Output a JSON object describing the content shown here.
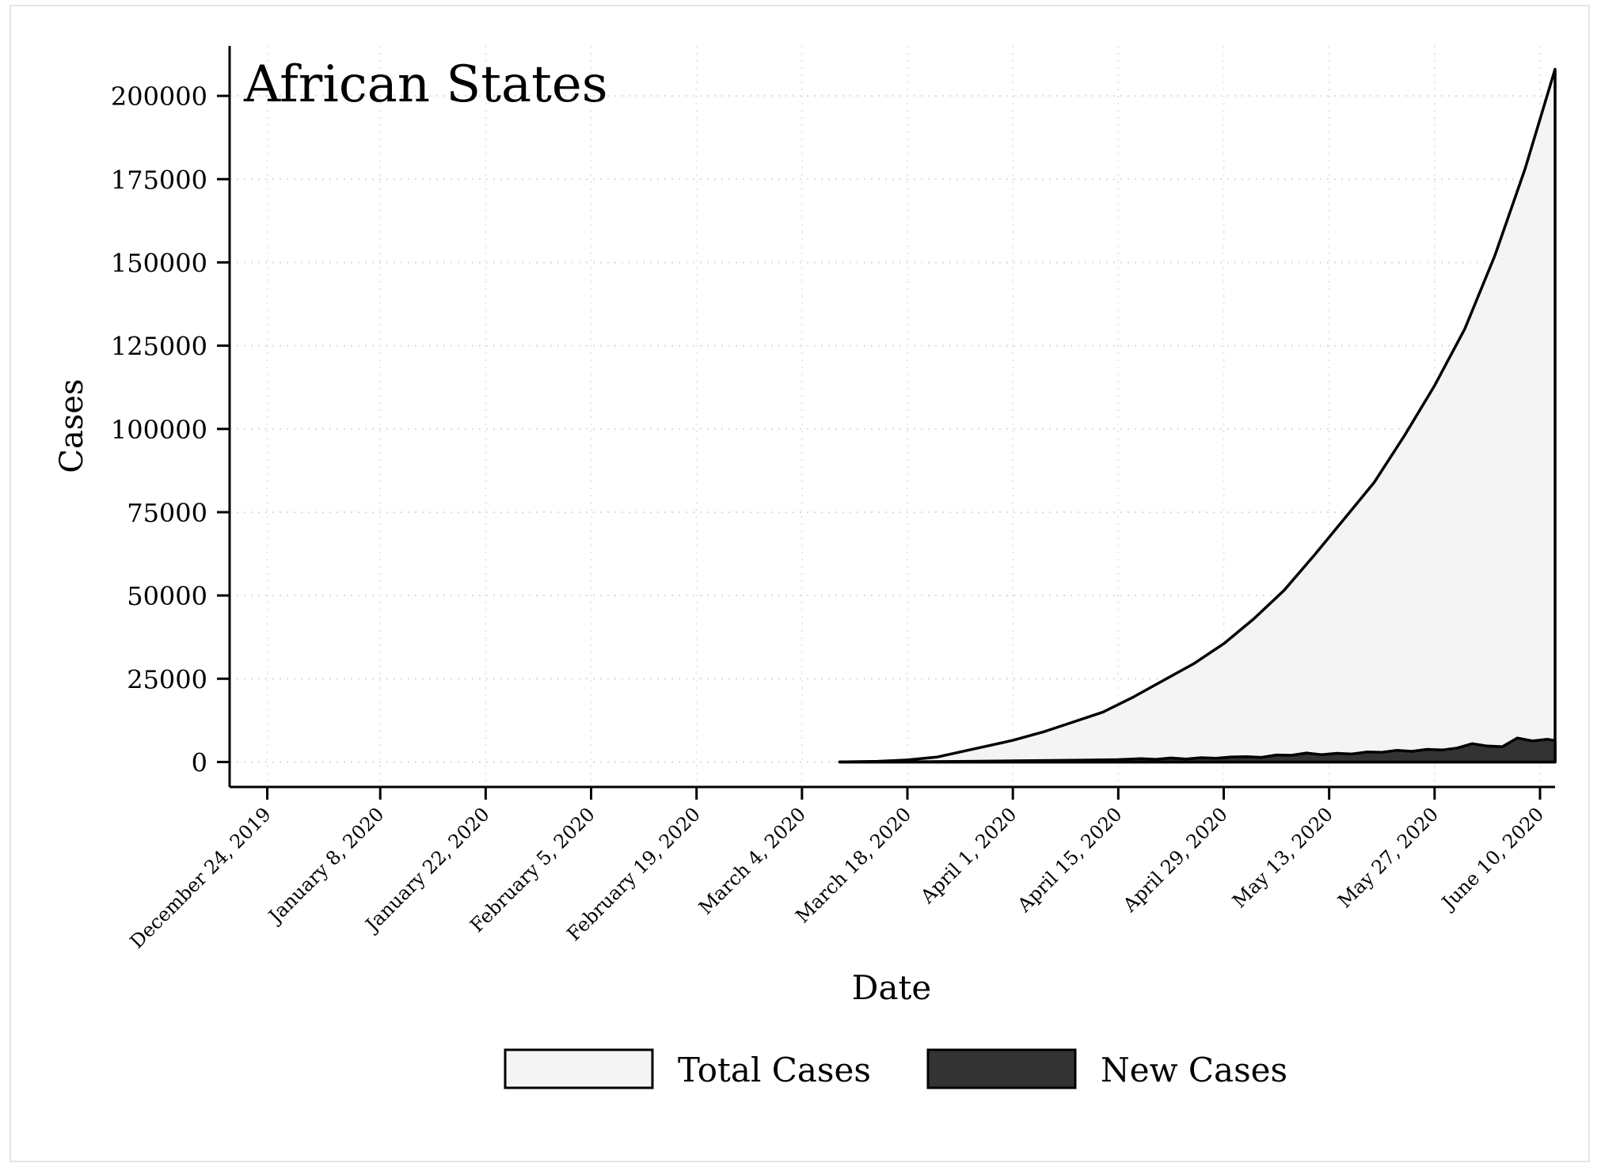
{
  "chart_data": {
    "type": "area",
    "title": "African States",
    "xlabel": "Date",
    "ylabel": "Cases",
    "x_range": [
      "2019-12-19",
      "2020-06-12"
    ],
    "ylim": [
      -7500,
      215000
    ],
    "y_ticks": [
      0,
      25000,
      50000,
      75000,
      100000,
      125000,
      150000,
      175000,
      200000
    ],
    "y_tick_labels": [
      "0",
      "25000",
      "50000",
      "75000",
      "100000",
      "125000",
      "150000",
      "175000",
      "200000"
    ],
    "x_ticks": [
      "2019-12-24",
      "2020-01-08",
      "2020-01-22",
      "2020-02-05",
      "2020-02-19",
      "2020-03-04",
      "2020-03-18",
      "2020-04-01",
      "2020-04-15",
      "2020-04-29",
      "2020-05-13",
      "2020-05-27",
      "2020-06-10"
    ],
    "x_tick_labels": [
      "December 24, 2019",
      "January 8, 2020",
      "January 22, 2020",
      "February 5, 2020",
      "February 19, 2020",
      "March 4, 2020",
      "March 18, 2020",
      "April 1, 2020",
      "April 15, 2020",
      "April 29, 2020",
      "May 13, 2020",
      "May 27, 2020",
      "June 10, 2020"
    ],
    "grid": true,
    "legend_position": "bottom",
    "series": [
      {
        "name": "Total Cases",
        "color": "#f4f4f4",
        "x": [
          "2020-03-09",
          "2020-03-14",
          "2020-03-18",
          "2020-03-22",
          "2020-03-26",
          "2020-03-29",
          "2020-04-01",
          "2020-04-05",
          "2020-04-09",
          "2020-04-13",
          "2020-04-17",
          "2020-04-21",
          "2020-04-25",
          "2020-04-29",
          "2020-05-03",
          "2020-05-07",
          "2020-05-11",
          "2020-05-15",
          "2020-05-19",
          "2020-05-23",
          "2020-05-27",
          "2020-05-31",
          "2020-06-04",
          "2020-06-08",
          "2020-06-12"
        ],
        "values": [
          0,
          200,
          600,
          1500,
          3500,
          5000,
          6500,
          9000,
          12000,
          15000,
          19500,
          24500,
          29500,
          35500,
          43000,
          51500,
          62000,
          73000,
          84000,
          98000,
          113000,
          130000,
          152000,
          178000,
          208000
        ]
      },
      {
        "name": "New Cases",
        "color": "#333333",
        "x": [
          "2020-03-09",
          "2020-03-18",
          "2020-03-26",
          "2020-04-01",
          "2020-04-09",
          "2020-04-15",
          "2020-04-18",
          "2020-04-20",
          "2020-04-22",
          "2020-04-24",
          "2020-04-26",
          "2020-04-28",
          "2020-04-30",
          "2020-05-02",
          "2020-05-04",
          "2020-05-06",
          "2020-05-08",
          "2020-05-10",
          "2020-05-12",
          "2020-05-14",
          "2020-05-16",
          "2020-05-18",
          "2020-05-20",
          "2020-05-22",
          "2020-05-24",
          "2020-05-26",
          "2020-05-28",
          "2020-05-30",
          "2020-06-01",
          "2020-06-03",
          "2020-06-05",
          "2020-06-07",
          "2020-06-09",
          "2020-06-11",
          "2020-06-12"
        ],
        "values": [
          0,
          50,
          200,
          350,
          500,
          700,
          1000,
          800,
          1200,
          900,
          1300,
          1100,
          1500,
          1600,
          1400,
          2100,
          2000,
          2700,
          2200,
          2600,
          2400,
          3000,
          2900,
          3500,
          3200,
          3800,
          3600,
          4200,
          5500,
          4800,
          4600,
          7200,
          6300,
          6800,
          6400
        ]
      }
    ]
  }
}
